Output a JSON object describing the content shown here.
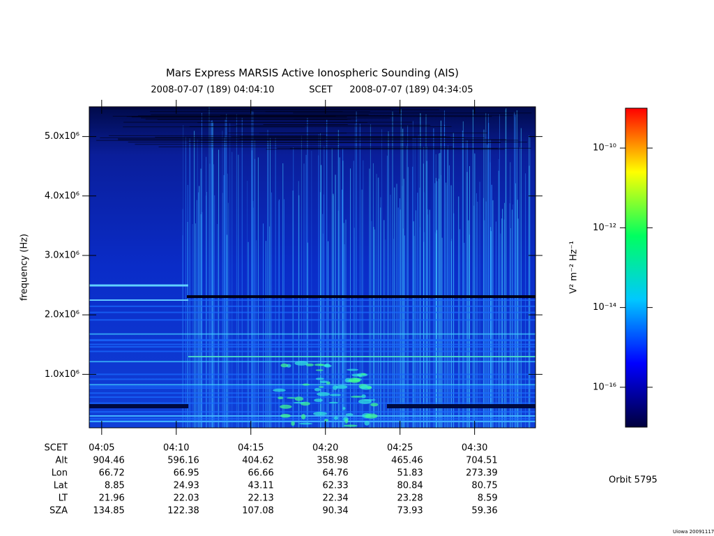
{
  "chart_data": {
    "type": "spectrogram",
    "title": "Mars Express MARSIS Active Ionospheric Sounding (AIS)",
    "start_time": "2008-07-07 (189) 04:04:10",
    "time_label": "SCET",
    "end_time": "2008-07-07 (189) 04:34:05",
    "y_label": "frequency (Hz)",
    "ylim": [
      100000,
      5500000
    ],
    "yticks": [
      {
        "value": 1000000,
        "label": "1.0x10⁶"
      },
      {
        "value": 2000000,
        "label": "2.0x10⁶"
      },
      {
        "value": 3000000,
        "label": "3.0x10⁶"
      },
      {
        "value": 4000000,
        "label": "4.0x10⁶"
      },
      {
        "value": 5000000,
        "label": "5.0x10⁶"
      }
    ],
    "xticks": [
      "04:05",
      "04:10",
      "04:15",
      "04:20",
      "04:25",
      "04:30"
    ],
    "colorbar": {
      "label": "V² m⁻² Hz⁻¹",
      "scale": "log",
      "lim": [
        1e-17,
        1e-09
      ],
      "ticks": [
        {
          "value": 1e-10,
          "label": "10⁻¹⁰"
        },
        {
          "value": 1e-12,
          "label": "10⁻¹²"
        },
        {
          "value": 1e-14,
          "label": "10⁻¹⁴"
        },
        {
          "value": 1e-16,
          "label": "10⁻¹⁶"
        }
      ],
      "colors": [
        "#00003c",
        "#0000ff",
        "#00c8ff",
        "#00ff60",
        "#ffff00",
        "#ff0000"
      ]
    }
  },
  "ephemeris": {
    "rows": [
      {
        "name": "Alt",
        "values": [
          "904.46",
          "596.16",
          "404.62",
          "358.98",
          "465.46",
          "704.51"
        ]
      },
      {
        "name": "Lon",
        "values": [
          "66.72",
          "66.95",
          "66.66",
          "64.76",
          "51.83",
          "273.39"
        ]
      },
      {
        "name": "Lat",
        "values": [
          "8.85",
          "24.93",
          "43.11",
          "62.33",
          "80.84",
          "80.75"
        ]
      },
      {
        "name": "LT",
        "values": [
          "21.96",
          "22.03",
          "22.13",
          "22.34",
          "23.28",
          "8.59"
        ]
      },
      {
        "name": "SZA",
        "values": [
          "134.85",
          "122.38",
          "107.08",
          "90.34",
          "73.93",
          "59.36"
        ]
      }
    ]
  },
  "orbit": "Orbit 5795",
  "footer": "Uiowa 20091117"
}
